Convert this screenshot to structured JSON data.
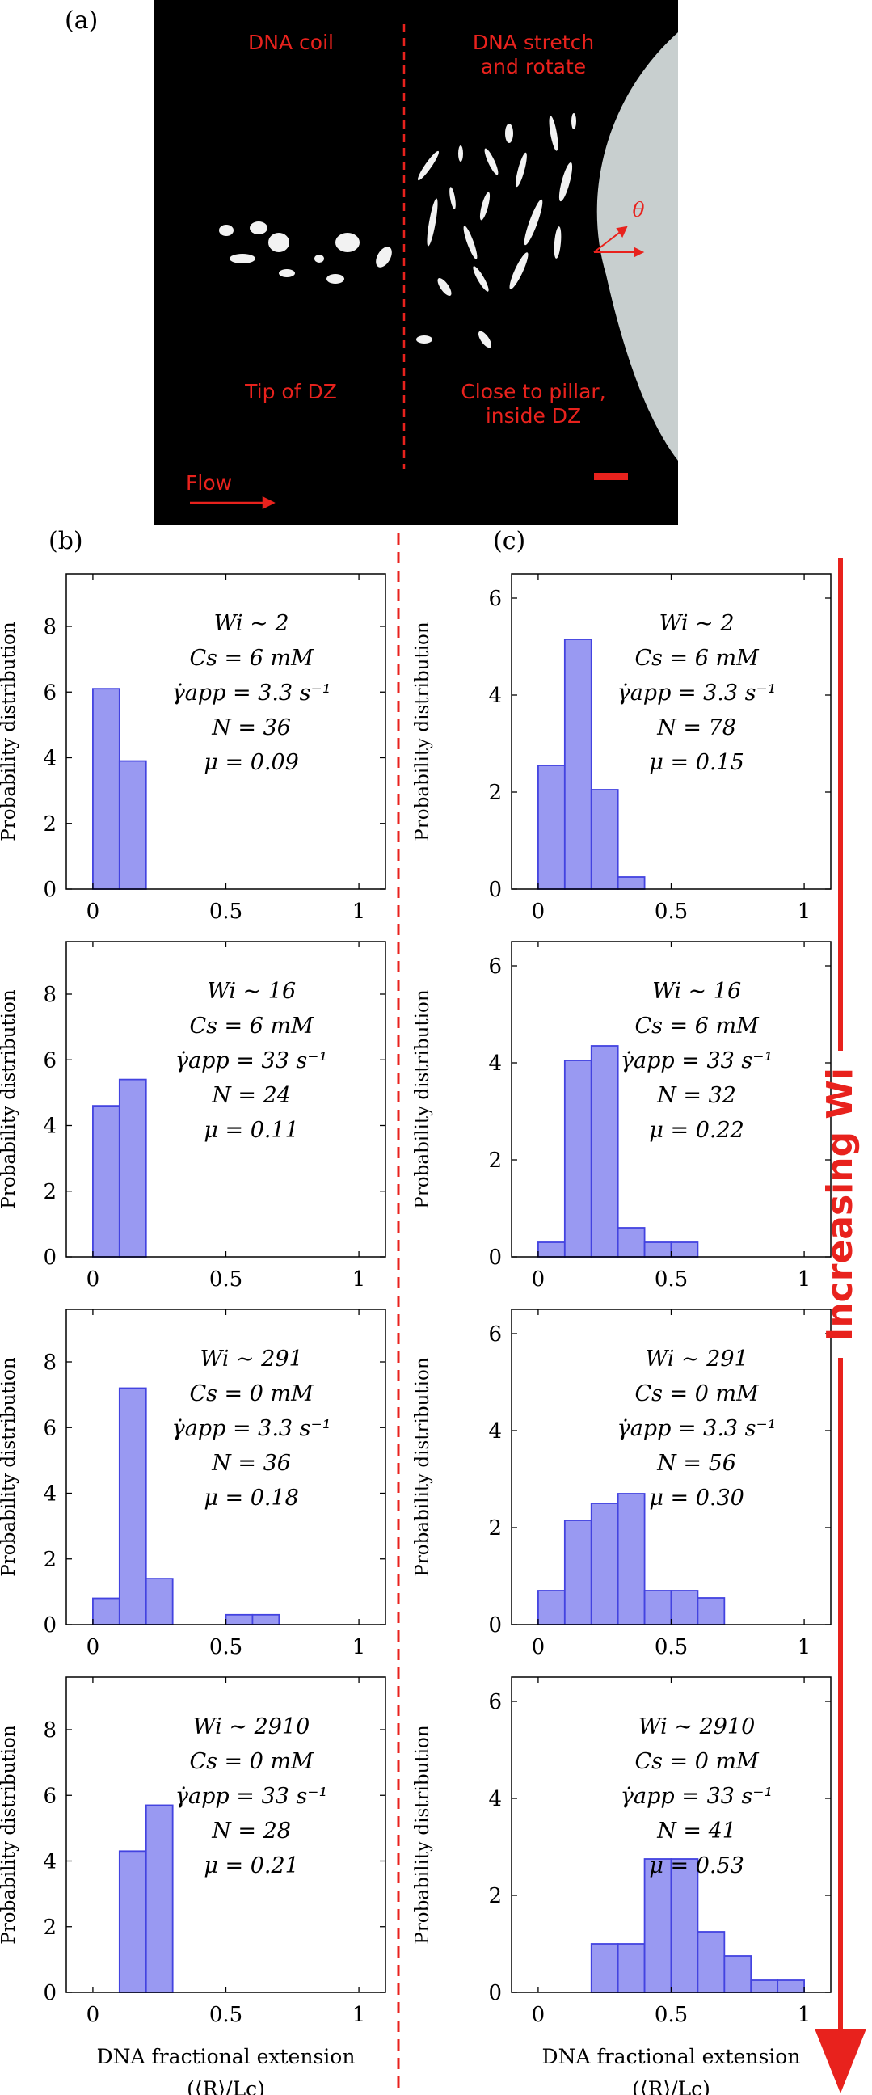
{
  "labels": {
    "a": "(a)",
    "b": "(b)",
    "c": "(c)"
  },
  "image_a": {
    "left_top": "DNA coil",
    "right_top": "DNA stretch\nand rotate",
    "left_bottom": "Tip of DZ",
    "right_bottom": "Close to pillar,\ninside DZ",
    "flow": "Flow",
    "theta": "θ"
  },
  "arrow_label": "Increasing Wi",
  "colors": {
    "bar_fill": "#9999f2",
    "bar_stroke": "#4343e0",
    "accent": "#e8221d"
  },
  "chart_data": [
    {
      "type": "bar",
      "panel": "b",
      "row": 1,
      "ylabel": "Probability distribution",
      "xlabel": "",
      "xlim": [
        -0.1,
        1.1
      ],
      "ylim": [
        0,
        9.6
      ],
      "xticks": [
        0,
        0.5,
        1
      ],
      "yticks": [
        0,
        2,
        4,
        6,
        8
      ],
      "bin_width": 0.1,
      "bin_starts": [
        0.0,
        0.1
      ],
      "values": [
        6.1,
        3.9
      ],
      "annotation": [
        "Wi ∼ 2",
        "Cs = 6 mM",
        "γ̇app = 3.3 s⁻¹",
        "N = 36",
        "μ = 0.09"
      ]
    },
    {
      "type": "bar",
      "panel": "b",
      "row": 2,
      "ylabel": "Probability distribution",
      "xlabel": "",
      "xlim": [
        -0.1,
        1.1
      ],
      "ylim": [
        0,
        9.6
      ],
      "xticks": [
        0,
        0.5,
        1
      ],
      "yticks": [
        0,
        2,
        4,
        6,
        8
      ],
      "bin_width": 0.1,
      "bin_starts": [
        0.0,
        0.1
      ],
      "values": [
        4.6,
        5.4
      ],
      "annotation": [
        "Wi ∼ 16",
        "Cs = 6 mM",
        "γ̇app = 33 s⁻¹",
        "N = 24",
        "μ = 0.11"
      ]
    },
    {
      "type": "bar",
      "panel": "b",
      "row": 3,
      "ylabel": "Probability distribution",
      "xlabel": "",
      "xlim": [
        -0.1,
        1.1
      ],
      "ylim": [
        0,
        9.6
      ],
      "xticks": [
        0,
        0.5,
        1
      ],
      "yticks": [
        0,
        2,
        4,
        6,
        8
      ],
      "bin_width": 0.1,
      "bin_starts": [
        0.0,
        0.1,
        0.2,
        0.5,
        0.6
      ],
      "values": [
        0.8,
        7.2,
        1.4,
        0.3,
        0.3
      ],
      "annotation": [
        "Wi ∼ 291",
        "Cs = 0 mM",
        "γ̇app = 3.3 s⁻¹",
        "N = 36",
        "μ = 0.18"
      ]
    },
    {
      "type": "bar",
      "panel": "b",
      "row": 4,
      "ylabel": "Probability distribution",
      "xlabel": "DNA fractional extension",
      "xlabel2": "(⟨R⟩/Lc)",
      "xlim": [
        -0.1,
        1.1
      ],
      "ylim": [
        0,
        9.6
      ],
      "xticks": [
        0,
        0.5,
        1
      ],
      "yticks": [
        0,
        2,
        4,
        6,
        8
      ],
      "bin_width": 0.1,
      "bin_starts": [
        0.1,
        0.2
      ],
      "values": [
        4.3,
        5.7
      ],
      "annotation": [
        "Wi ∼ 2910",
        "Cs = 0 mM",
        "γ̇app = 33 s⁻¹",
        "N = 28",
        "μ = 0.21"
      ]
    },
    {
      "type": "bar",
      "panel": "c",
      "row": 1,
      "ylabel": "Probability distribution",
      "xlabel": "",
      "xlim": [
        -0.1,
        1.1
      ],
      "ylim": [
        0,
        6.5
      ],
      "xticks": [
        0,
        0.5,
        1
      ],
      "yticks": [
        0,
        2,
        4,
        6
      ],
      "bin_width": 0.1,
      "bin_starts": [
        0.0,
        0.1,
        0.2,
        0.3
      ],
      "values": [
        2.55,
        5.15,
        2.05,
        0.25
      ],
      "annotation": [
        "Wi ∼ 2",
        "Cs = 6 mM",
        "γ̇app = 3.3 s⁻¹",
        "N = 78",
        "μ = 0.15"
      ]
    },
    {
      "type": "bar",
      "panel": "c",
      "row": 2,
      "ylabel": "Probability distribution",
      "xlabel": "",
      "xlim": [
        -0.1,
        1.1
      ],
      "ylim": [
        0,
        6.5
      ],
      "xticks": [
        0,
        0.5,
        1
      ],
      "yticks": [
        0,
        2,
        4,
        6
      ],
      "bin_width": 0.1,
      "bin_starts": [
        0.0,
        0.1,
        0.2,
        0.3,
        0.4,
        0.5
      ],
      "values": [
        0.3,
        4.05,
        4.35,
        0.6,
        0.3,
        0.3
      ],
      "annotation": [
        "Wi ∼ 16",
        "Cs = 6 mM",
        "γ̇app = 33 s⁻¹",
        "N = 32",
        "μ = 0.22"
      ]
    },
    {
      "type": "bar",
      "panel": "c",
      "row": 3,
      "ylabel": "Probability distribution",
      "xlabel": "",
      "xlim": [
        -0.1,
        1.1
      ],
      "ylim": [
        0,
        6.5
      ],
      "xticks": [
        0,
        0.5,
        1
      ],
      "yticks": [
        0,
        2,
        4,
        6
      ],
      "bin_width": 0.1,
      "bin_starts": [
        0.0,
        0.1,
        0.2,
        0.3,
        0.4,
        0.5,
        0.6
      ],
      "values": [
        0.7,
        2.15,
        2.5,
        2.7,
        0.7,
        0.7,
        0.55
      ],
      "annotation": [
        "Wi ∼ 291",
        "Cs = 0 mM",
        "γ̇app = 3.3 s⁻¹",
        "N = 56",
        "μ = 0.30"
      ]
    },
    {
      "type": "bar",
      "panel": "c",
      "row": 4,
      "ylabel": "Probability distribution",
      "xlabel": "DNA fractional extension",
      "xlabel2": "(⟨R⟩/Lc)",
      "xlim": [
        -0.1,
        1.1
      ],
      "ylim": [
        0,
        6.5
      ],
      "xticks": [
        0,
        0.5,
        1
      ],
      "yticks": [
        0,
        2,
        4,
        6
      ],
      "bin_width": 0.1,
      "bin_starts": [
        0.2,
        0.3,
        0.4,
        0.5,
        0.6,
        0.7,
        0.8,
        0.9
      ],
      "values": [
        1.0,
        1.0,
        2.75,
        2.75,
        1.25,
        0.75,
        0.25,
        0.25
      ],
      "annotation": [
        "Wi ∼ 2910",
        "Cs = 0 mM",
        "γ̇app = 33 s⁻¹",
        "N = 41",
        "μ = 0.53"
      ]
    }
  ]
}
